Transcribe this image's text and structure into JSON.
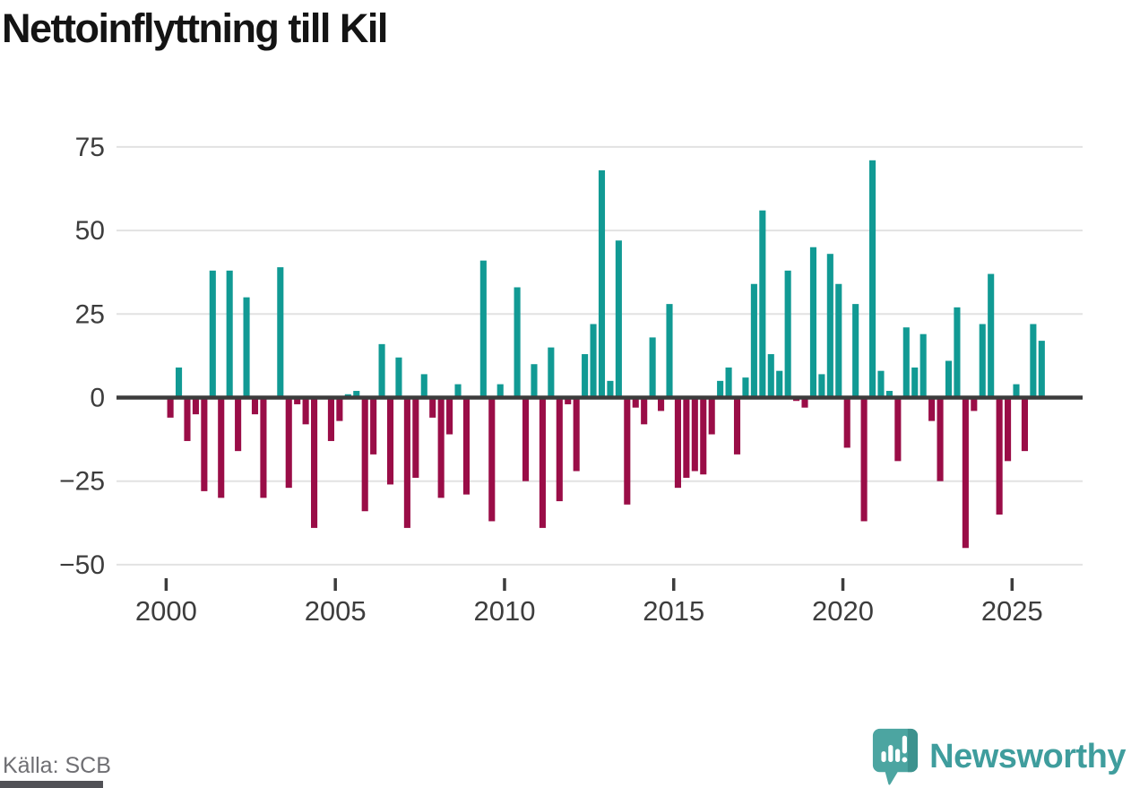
{
  "title": "Nettoinflyttning till Kil",
  "footer": {
    "source": "Källa: SCB",
    "brand": "Newsworthy"
  },
  "colors": {
    "positive": "#119a94",
    "negative": "#9a0d47",
    "axis": "#3c3c3c",
    "grid": "#e2e2e2",
    "tick_label": "#3d3d3d",
    "source_text": "#6f6f73",
    "logo_bubble": "#4ca5a1",
    "logo_bubble_shade": "#3d928e",
    "wordmark": "#3f9d9d"
  },
  "chart_data": {
    "type": "bar",
    "title": "Nettoinflyttning till Kil",
    "xlabel": "",
    "ylabel": "",
    "frequency": "quarterly",
    "range": "2000Q1–2025Q4",
    "ylim": [
      -50,
      75
    ],
    "yticks": [
      75,
      50,
      25,
      0,
      -25,
      -50
    ],
    "xticks": [
      2000,
      2005,
      2010,
      2015,
      2020,
      2025
    ],
    "grid": true,
    "legend": false,
    "series_by_year": [
      {
        "year": 2000,
        "quarters": [
          -6,
          9,
          -13,
          -5
        ]
      },
      {
        "year": 2001,
        "quarters": [
          -28,
          38,
          -30,
          38
        ]
      },
      {
        "year": 2002,
        "quarters": [
          -16,
          30,
          -5,
          -30
        ]
      },
      {
        "year": 2003,
        "quarters": [
          0,
          39,
          -27,
          -2
        ]
      },
      {
        "year": 2004,
        "quarters": [
          -8,
          -39,
          0,
          -13
        ]
      },
      {
        "year": 2005,
        "quarters": [
          -7,
          1,
          2,
          -34
        ]
      },
      {
        "year": 2006,
        "quarters": [
          -17,
          16,
          -26,
          12
        ]
      },
      {
        "year": 2007,
        "quarters": [
          -39,
          -24,
          7,
          -6
        ]
      },
      {
        "year": 2008,
        "quarters": [
          -30,
          -11,
          4,
          -29
        ]
      },
      {
        "year": 2009,
        "quarters": [
          0,
          41,
          -37,
          4
        ]
      },
      {
        "year": 2010,
        "quarters": [
          0,
          33,
          -25,
          10
        ]
      },
      {
        "year": 2011,
        "quarters": [
          -39,
          15,
          -31,
          -2
        ]
      },
      {
        "year": 2012,
        "quarters": [
          -22,
          13,
          22,
          68
        ]
      },
      {
        "year": 2013,
        "quarters": [
          5,
          47,
          -32,
          -3
        ]
      },
      {
        "year": 2014,
        "quarters": [
          -8,
          18,
          -4,
          28
        ]
      },
      {
        "year": 2015,
        "quarters": [
          -27,
          -24,
          -22,
          -23
        ]
      },
      {
        "year": 2016,
        "quarters": [
          -11,
          5,
          9,
          -17
        ]
      },
      {
        "year": 2017,
        "quarters": [
          6,
          34,
          56,
          13
        ]
      },
      {
        "year": 2018,
        "quarters": [
          8,
          38,
          -1,
          -3
        ]
      },
      {
        "year": 2019,
        "quarters": [
          45,
          7,
          43,
          34
        ]
      },
      {
        "year": 2020,
        "quarters": [
          -15,
          28,
          -37,
          71
        ]
      },
      {
        "year": 2021,
        "quarters": [
          8,
          2,
          -19,
          21
        ]
      },
      {
        "year": 2022,
        "quarters": [
          9,
          19,
          -7,
          -25
        ]
      },
      {
        "year": 2023,
        "quarters": [
          11,
          27,
          -45,
          -4
        ]
      },
      {
        "year": 2024,
        "quarters": [
          22,
          37,
          -35,
          -19
        ]
      },
      {
        "year": 2025,
        "quarters": [
          4,
          -16,
          22,
          17
        ]
      }
    ]
  }
}
